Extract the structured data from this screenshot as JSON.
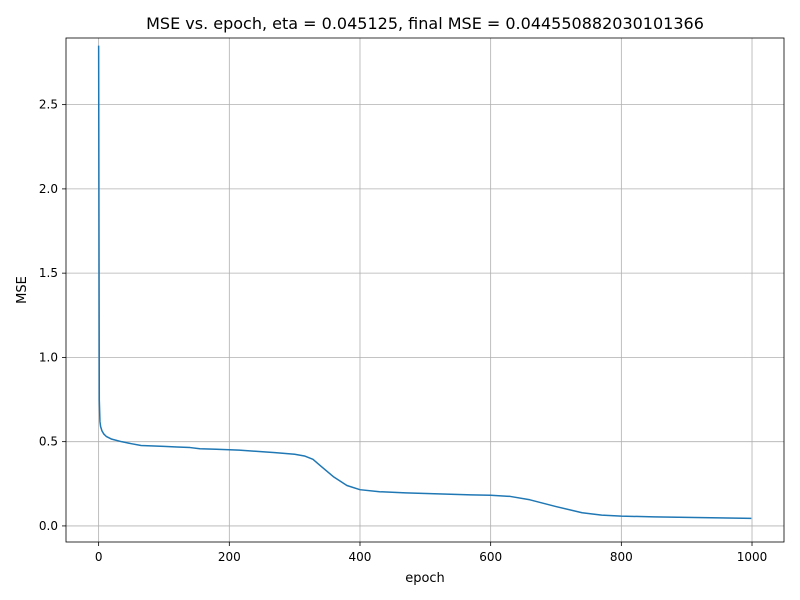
{
  "chart_data": {
    "type": "line",
    "title": "MSE vs. epoch, eta = 0.045125, final MSE = 0.044550882030101366",
    "xlabel": "epoch",
    "ylabel": "MSE",
    "xlim": [
      -49.95,
      1048.95
    ],
    "ylim": [
      -0.0954,
      2.8954
    ],
    "xticks": [
      0,
      200,
      400,
      600,
      800,
      1000
    ],
    "xtick_labels": [
      "0",
      "200",
      "400",
      "600",
      "800",
      "1000"
    ],
    "yticks": [
      0.0,
      0.5,
      1.0,
      1.5,
      2.0,
      2.5
    ],
    "ytick_labels": [
      "0.0",
      "0.5",
      "1.0",
      "1.5",
      "2.0",
      "2.5"
    ],
    "grid": true,
    "legend": "none",
    "colors": {
      "line": "#1f77b4",
      "grid": "#b0b0b0"
    },
    "series": [
      {
        "x": [
          0,
          1,
          2,
          3,
          5,
          8,
          12,
          20,
          35,
          50,
          65,
          80,
          100,
          120,
          140,
          155,
          180,
          215,
          240,
          270,
          300,
          315,
          328,
          340,
          360,
          380,
          400,
          430,
          470,
          520,
          570,
          600,
          630,
          660,
          700,
          740,
          770,
          800,
          850,
          900,
          950,
          999
        ],
        "y": [
          2.85,
          0.75,
          0.62,
          0.59,
          0.565,
          0.545,
          0.53,
          0.515,
          0.5,
          0.488,
          0.477,
          0.475,
          0.472,
          0.468,
          0.465,
          0.458,
          0.455,
          0.45,
          0.443,
          0.435,
          0.425,
          0.415,
          0.395,
          0.355,
          0.29,
          0.24,
          0.215,
          0.203,
          0.196,
          0.19,
          0.184,
          0.182,
          0.175,
          0.155,
          0.115,
          0.078,
          0.064,
          0.058,
          0.054,
          0.051,
          0.048,
          0.045
        ]
      }
    ]
  }
}
